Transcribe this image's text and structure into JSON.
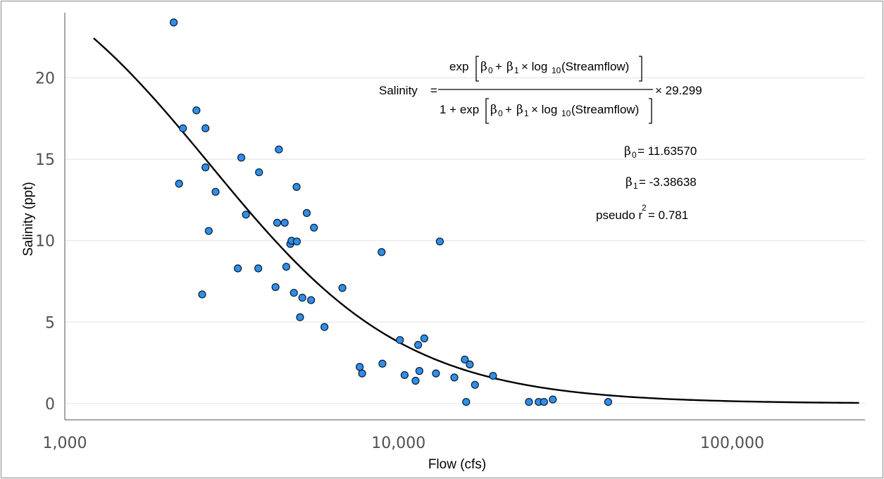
{
  "chart_data": {
    "type": "scatter",
    "xlabel": "Flow (cfs)",
    "ylabel": "Salinity (ppt)",
    "xscale": "log",
    "xlim": [
      1000,
      250000
    ],
    "ylim": [
      -1,
      24
    ],
    "x_ticks": [
      1000,
      10000,
      100000
    ],
    "x_tick_labels": [
      "1,000",
      "10,000",
      "100,000"
    ],
    "y_ticks": [
      0,
      5,
      10,
      15,
      20
    ],
    "y_tick_labels": [
      "0",
      "5",
      "10",
      "15",
      "20"
    ],
    "grid": "horizontal",
    "point_color": "#2f8ee8",
    "line_color": "#000000",
    "points": [
      [
        2120,
        23.4
      ],
      [
        2260,
        16.9
      ],
      [
        2480,
        18.0
      ],
      [
        2640,
        16.9
      ],
      [
        2200,
        13.5
      ],
      [
        2640,
        14.5
      ],
      [
        2830,
        13.0
      ],
      [
        2700,
        10.6
      ],
      [
        2580,
        6.7
      ],
      [
        3380,
        15.1
      ],
      [
        3820,
        14.2
      ],
      [
        3300,
        8.3
      ],
      [
        3800,
        8.3
      ],
      [
        3490,
        11.6
      ],
      [
        4380,
        15.6
      ],
      [
        4330,
        11.1
      ],
      [
        4560,
        11.1
      ],
      [
        4950,
        13.3
      ],
      [
        5310,
        11.7
      ],
      [
        5580,
        10.8
      ],
      [
        4740,
        9.8
      ],
      [
        4780,
        10.0
      ],
      [
        4960,
        9.95
      ],
      [
        4610,
        8.4
      ],
      [
        4280,
        7.15
      ],
      [
        4860,
        6.8
      ],
      [
        5150,
        6.5
      ],
      [
        5470,
        6.35
      ],
      [
        5070,
        5.3
      ],
      [
        6000,
        4.7
      ],
      [
        6790,
        7.1
      ],
      [
        7650,
        2.25
      ],
      [
        7780,
        1.85
      ],
      [
        8900,
        9.3
      ],
      [
        8950,
        2.45
      ],
      [
        10100,
        3.9
      ],
      [
        10430,
        1.75
      ],
      [
        11250,
        1.4
      ],
      [
        11450,
        3.6
      ],
      [
        11550,
        2.0
      ],
      [
        11950,
        4.0
      ],
      [
        12950,
        1.85
      ],
      [
        13300,
        9.95
      ],
      [
        14700,
        1.6
      ],
      [
        15800,
        2.7
      ],
      [
        16350,
        2.4
      ],
      [
        16950,
        1.15
      ],
      [
        15950,
        0.1
      ],
      [
        19200,
        1.7
      ],
      [
        24600,
        0.1
      ],
      [
        26300,
        0.1
      ],
      [
        27300,
        0.1
      ],
      [
        29000,
        0.25
      ],
      [
        42500,
        0.1
      ]
    ],
    "fit": {
      "beta0": 11.6357,
      "beta1": -3.38638,
      "scale": 29.299,
      "x_from": 1220,
      "x_to": 240000
    },
    "annotations": {
      "eq_lhs": "Salinity",
      "eq_num_prefix": "exp",
      "eq_num_body": "(Streamflow)",
      "eq_den_prefix": "1 + exp",
      "eq_den_body": "(Streamflow)",
      "eq_scale": "× 29.299",
      "beta0_label": "β",
      "beta0_value": "= 11.63570",
      "beta1_label": "β",
      "beta1_value": "= -3.38638",
      "pseudo_label": "pseudo r",
      "pseudo_value": "= 0.781"
    }
  }
}
